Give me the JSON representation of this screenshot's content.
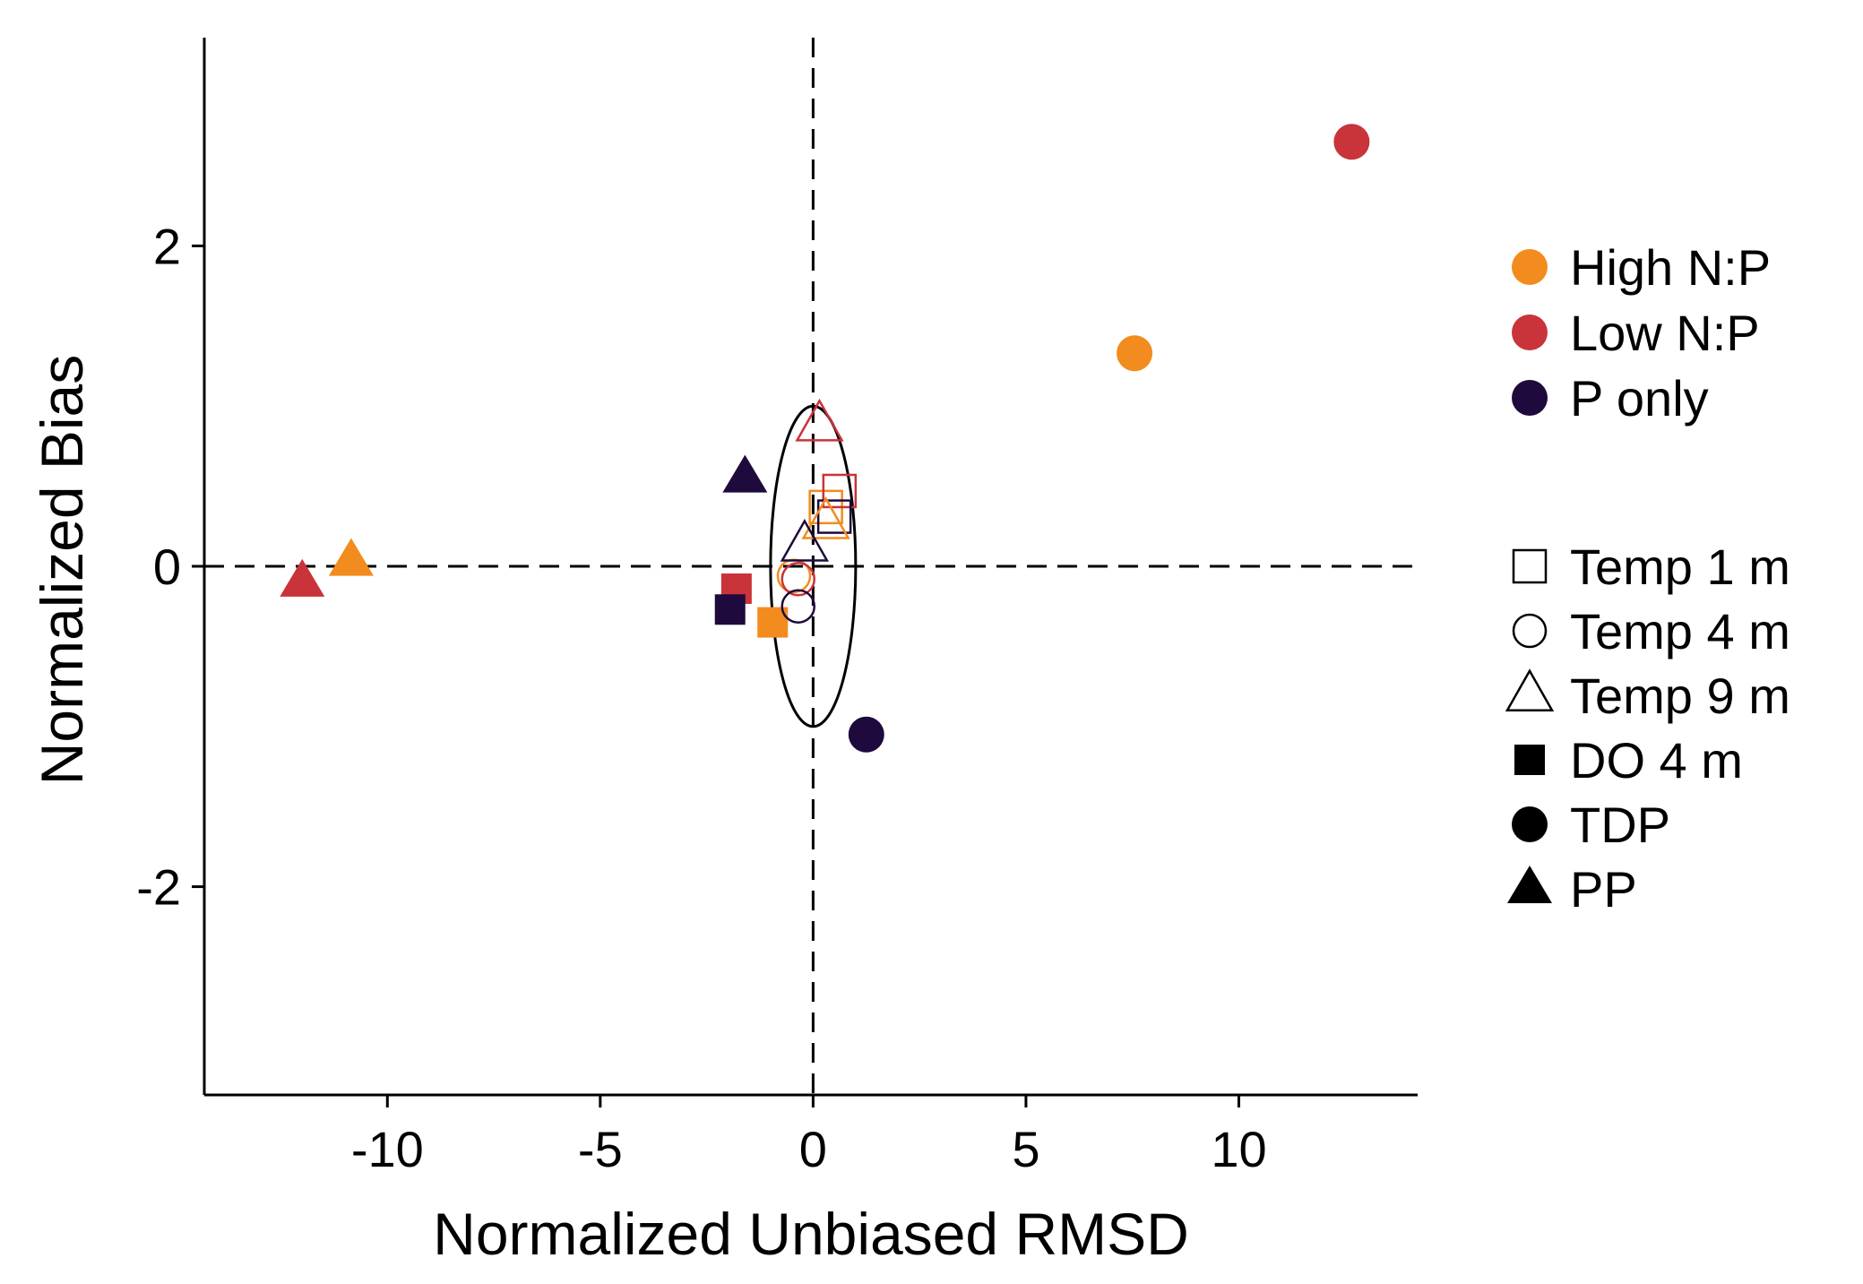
{
  "chart_data": {
    "type": "scatter",
    "xlabel": "Normalized Unbiased RMSD",
    "ylabel": "Normalized Bias",
    "xlim": [
      -14.3,
      14.2
    ],
    "ylim": [
      -3.3,
      3.3
    ],
    "x_ticks": [
      -10,
      -5,
      0,
      5,
      10
    ],
    "x_tick_labels": [
      "-10",
      "-5",
      "0",
      "5",
      "10"
    ],
    "y_ticks": [
      -2,
      0,
      2
    ],
    "y_tick_labels": [
      "-2",
      "0",
      "2"
    ],
    "grid": false,
    "reference_lines": [
      {
        "orientation": "vertical",
        "value": 0,
        "style": "dashed"
      },
      {
        "orientation": "horizontal",
        "value": 0,
        "style": "dashed"
      }
    ],
    "reference_ellipse": {
      "center_x": 0,
      "center_y": 0,
      "radius_x": 1,
      "radius_y": 1
    },
    "colors": {
      "High N:P": "#f28c1e",
      "Low N:P": "#c9333a",
      "P only": "#1e0a3c"
    },
    "legend_color": {
      "title": "",
      "placement": "right",
      "entries": [
        {
          "label": "High N:P",
          "color": "#f28c1e"
        },
        {
          "label": "Low N:P",
          "color": "#c9333a"
        },
        {
          "label": "P only",
          "color": "#1e0a3c"
        }
      ]
    },
    "legend_shape": {
      "title": "",
      "placement": "right",
      "entries": [
        {
          "label": "Temp 1 m",
          "shape": "open-square"
        },
        {
          "label": "Temp 4 m",
          "shape": "open-circle"
        },
        {
          "label": "Temp 9 m",
          "shape": "open-triangle"
        },
        {
          "label": "DO 4 m",
          "shape": "filled-square"
        },
        {
          "label": "TDP",
          "shape": "filled-circle"
        },
        {
          "label": "PP",
          "shape": "filled-triangle"
        }
      ]
    },
    "points": [
      {
        "group": "High N:P",
        "variable": "Temp 1 m",
        "x": 0.3,
        "y": 0.37
      },
      {
        "group": "Low N:P",
        "variable": "Temp 1 m",
        "x": 0.62,
        "y": 0.47
      },
      {
        "group": "P only",
        "variable": "Temp 1 m",
        "x": 0.5,
        "y": 0.31
      },
      {
        "group": "High N:P",
        "variable": "Temp 4 m",
        "x": -0.45,
        "y": -0.06
      },
      {
        "group": "Low N:P",
        "variable": "Temp 4 m",
        "x": -0.35,
        "y": -0.08
      },
      {
        "group": "P only",
        "variable": "Temp 4 m",
        "x": -0.35,
        "y": -0.25
      },
      {
        "group": "High N:P",
        "variable": "Temp 9 m",
        "x": 0.3,
        "y": 0.27
      },
      {
        "group": "Low N:P",
        "variable": "Temp 9 m",
        "x": 0.15,
        "y": 0.88
      },
      {
        "group": "P only",
        "variable": "Temp 9 m",
        "x": -0.2,
        "y": 0.13
      },
      {
        "group": "High N:P",
        "variable": "DO 4 m",
        "x": -0.95,
        "y": -0.35
      },
      {
        "group": "Low N:P",
        "variable": "DO 4 m",
        "x": -1.8,
        "y": -0.14
      },
      {
        "group": "P only",
        "variable": "DO 4 m",
        "x": -1.95,
        "y": -0.27
      },
      {
        "group": "High N:P",
        "variable": "TDP",
        "x": 7.55,
        "y": 1.33
      },
      {
        "group": "Low N:P",
        "variable": "TDP",
        "x": 12.65,
        "y": 2.65
      },
      {
        "group": "P only",
        "variable": "TDP",
        "x": 1.25,
        "y": -1.05
      },
      {
        "group": "High N:P",
        "variable": "PP",
        "x": -10.85,
        "y": 0.03
      },
      {
        "group": "Low N:P",
        "variable": "PP",
        "x": -12.0,
        "y": -0.1
      },
      {
        "group": "P only",
        "variable": "PP",
        "x": -1.6,
        "y": 0.55
      }
    ]
  }
}
